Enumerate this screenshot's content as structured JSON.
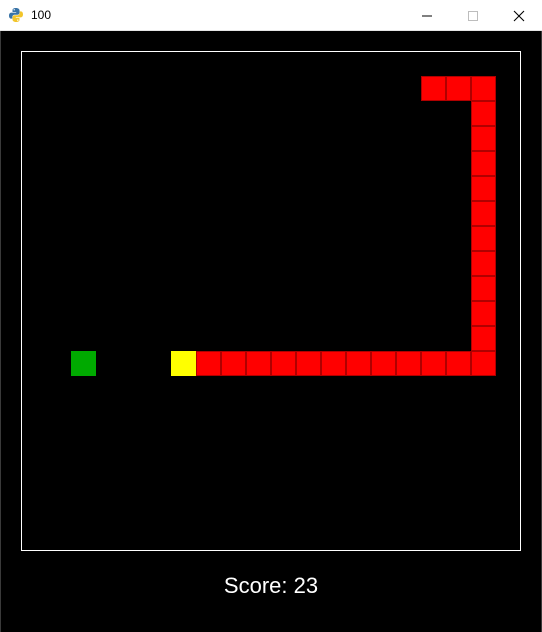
{
  "window": {
    "title": "100",
    "icon": "python-icon"
  },
  "game": {
    "score_label": "Score: 23",
    "grid_cell_units": 20,
    "snake_body": [
      [
        16,
        1
      ],
      [
        17,
        1
      ],
      [
        18,
        1
      ],
      [
        18,
        2
      ],
      [
        18,
        3
      ],
      [
        18,
        4
      ],
      [
        18,
        5
      ],
      [
        18,
        6
      ],
      [
        18,
        7
      ],
      [
        18,
        8
      ],
      [
        18,
        9
      ],
      [
        18,
        10
      ],
      [
        18,
        11
      ],
      [
        18,
        12
      ],
      [
        17,
        12
      ],
      [
        16,
        12
      ],
      [
        15,
        12
      ],
      [
        14,
        12
      ],
      [
        13,
        12
      ],
      [
        12,
        12
      ],
      [
        11,
        12
      ],
      [
        10,
        12
      ],
      [
        9,
        12
      ],
      [
        8,
        12
      ],
      [
        7,
        12
      ]
    ],
    "snake_head": [
      6,
      12
    ],
    "food": [
      2,
      12
    ],
    "colors": {
      "background": "#000000",
      "border": "#ffffff",
      "snake_body": "#ff0000",
      "snake_head": "#ffff00",
      "food": "#00aa00",
      "score_text": "#ffffff"
    }
  }
}
